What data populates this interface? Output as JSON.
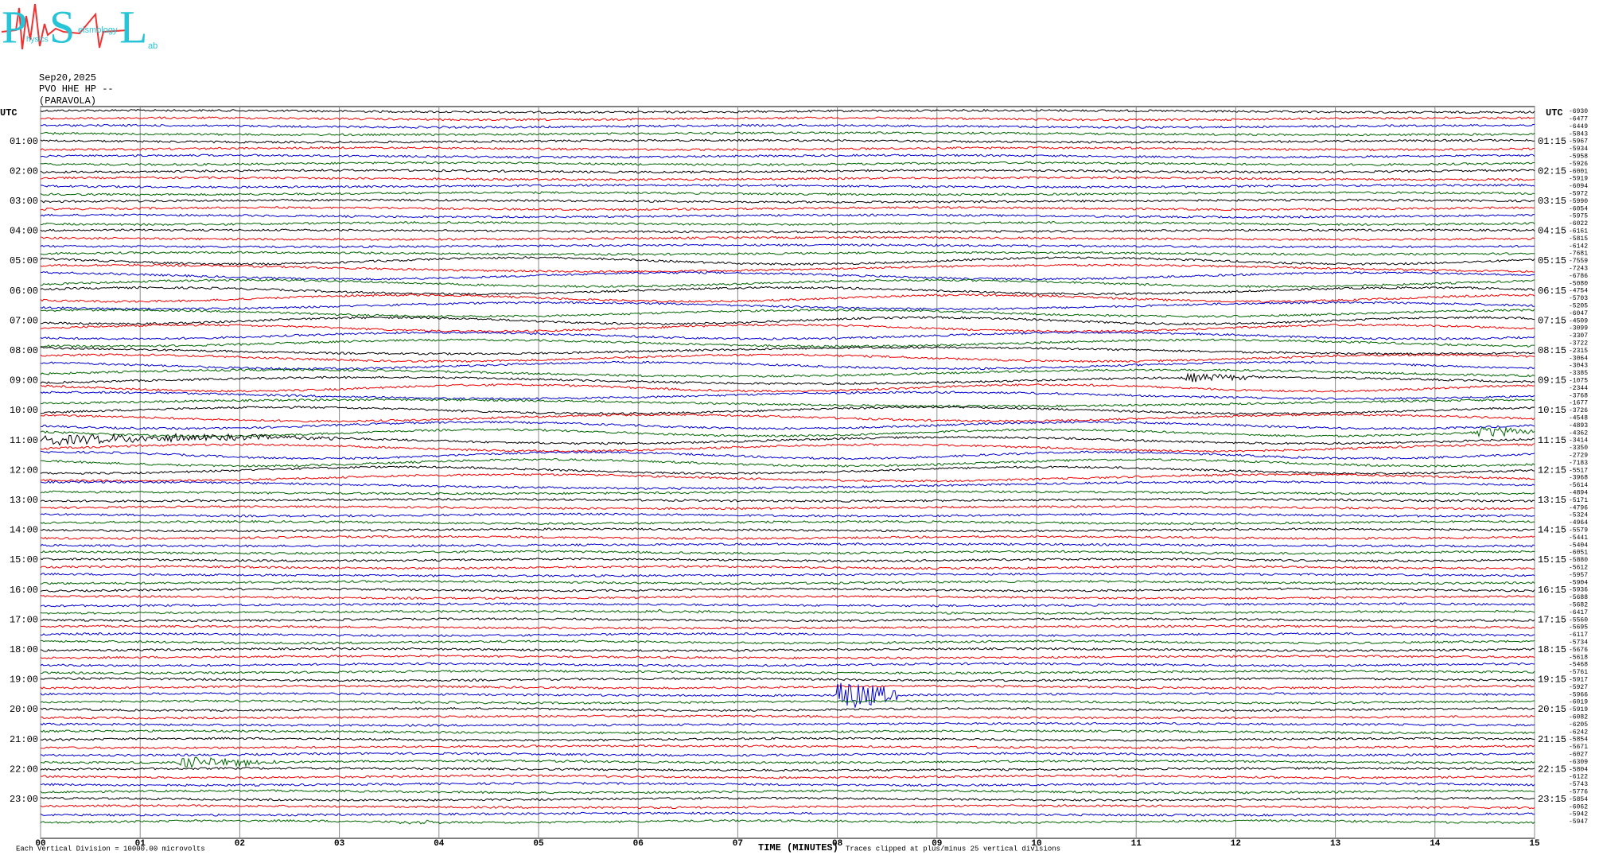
{
  "logo": {
    "letters": [
      "P",
      "S",
      "L"
    ],
    "words": [
      "hysics",
      "eismology",
      "ab"
    ]
  },
  "header": {
    "date": "Sep20,2025",
    "station": "PVO HHE HP --",
    "site": "(PARAVOLA)"
  },
  "left_axis": {
    "title": "UTC",
    "labels": [
      "01:00",
      "02:00",
      "03:00",
      "04:00",
      "05:00",
      "06:00",
      "07:00",
      "08:00",
      "09:00",
      "10:00",
      "11:00",
      "12:00",
      "13:00",
      "14:00",
      "15:00",
      "16:00",
      "17:00",
      "18:00",
      "19:00",
      "20:00",
      "21:00",
      "22:00",
      "23:00"
    ]
  },
  "right_axis": {
    "title": "UTC",
    "labels": [
      "01:15",
      "02:15",
      "03:15",
      "04:15",
      "05:15",
      "06:15",
      "07:15",
      "08:15",
      "09:15",
      "10:15",
      "11:15",
      "12:15",
      "13:15",
      "14:15",
      "15:15",
      "16:15",
      "17:15",
      "18:15",
      "19:15",
      "20:15",
      "21:15",
      "22:15",
      "23:15"
    ]
  },
  "row_offsets": [
    -6930,
    -6477,
    -6449,
    -5843,
    -5967,
    -5934,
    -5958,
    -5926,
    -6001,
    -5919,
    -6094,
    -5972,
    -5990,
    -6054,
    -5975,
    -6022,
    -6161,
    -5815,
    -6142,
    -7681,
    -7559,
    -7243,
    -6786,
    -5080,
    -4754,
    -5703,
    -5205,
    -6047,
    -4509,
    -3099,
    -3307,
    -3722,
    -2315,
    -3064,
    -3043,
    -3385,
    -1075,
    -2344,
    -3768,
    -1677,
    -3726,
    -4548,
    -4893,
    -4362,
    -3414,
    -3350,
    -2729,
    -7183,
    -5517,
    -3968,
    -5614,
    -4894,
    -5171,
    -4796,
    -5324,
    -4964,
    -5579,
    -5441,
    -5404,
    -6051,
    -5880,
    -5612,
    -5957,
    -5904,
    -5936,
    -5688,
    -5682,
    -6417,
    -5560,
    -5695,
    -6117,
    -5734,
    -5676,
    -5618,
    -5468,
    -5761,
    -5917,
    -5927,
    -5966,
    -6019,
    -5919,
    -6082,
    -6205,
    -6242,
    -5854,
    -5671,
    -6027,
    -6309,
    -5804,
    -6122,
    -5743,
    -5776,
    -5854,
    -6062,
    -5942,
    -5947
  ],
  "x_axis": {
    "labels": [
      "00",
      "01",
      "02",
      "03",
      "04",
      "05",
      "06",
      "07",
      "08",
      "09",
      "10",
      "11",
      "12",
      "13",
      "14",
      "15"
    ],
    "title": "TIME (MINUTES)"
  },
  "footer": {
    "scale": "Each Vertical Division = 10000.00 microvolts",
    "clip": "Traces clipped at plus/minus 25 vertical divisions"
  }
}
